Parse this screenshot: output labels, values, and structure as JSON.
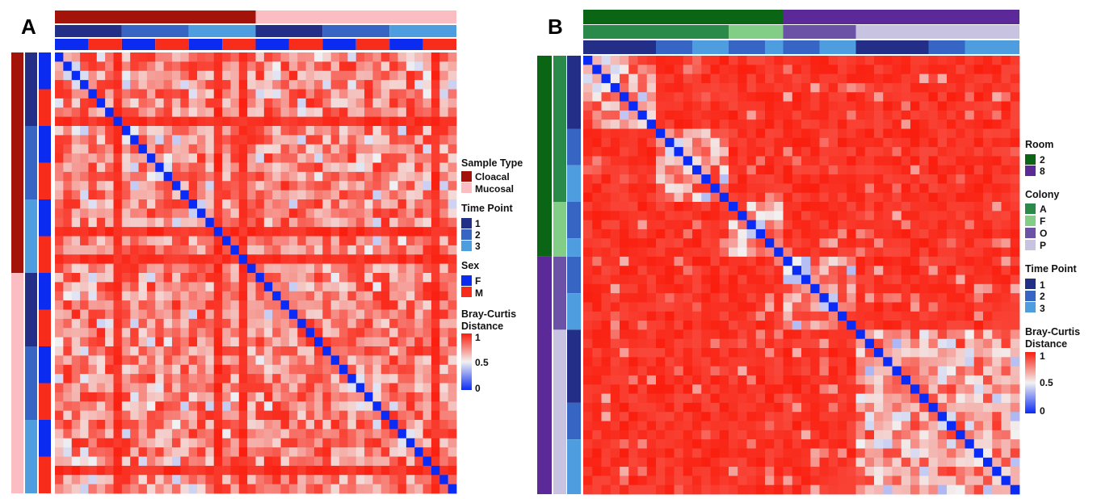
{
  "figure": {
    "colors": {
      "cloacal": "#A41309",
      "mucosal": "#FBBDC2",
      "time1": "#232E86",
      "time2": "#3765C3",
      "time3": "#4E9EDF",
      "female": "#0B2BF1",
      "male": "#F72C1B",
      "room2": "#0A6615",
      "room8": "#5B2998",
      "colonyA": "#2A8A4A",
      "colonyF": "#83CE87",
      "colonyO": "#6B52A6",
      "colonyP": "#C8C3E1",
      "dist_low": "#0A2BF5",
      "dist_mid": "#F2F2F2",
      "dist_high": "#FA1E0E"
    }
  },
  "chart_data": [
    {
      "type": "heatmap",
      "panel_label": "A",
      "n_samples": 48,
      "value_range": [
        0,
        1
      ],
      "diagonal_value": 0,
      "annotation_tracks": [
        {
          "name": "Sample Type",
          "groups": [
            {
              "label": "Cloacal",
              "count": 24
            },
            {
              "label": "Mucosal",
              "count": 24
            }
          ]
        },
        {
          "name": "Time Point",
          "groups": [
            {
              "label": "1",
              "count": 8
            },
            {
              "label": "2",
              "count": 8
            },
            {
              "label": "3",
              "count": 8
            },
            {
              "label": "1",
              "count": 8
            },
            {
              "label": "2",
              "count": 8
            },
            {
              "label": "3",
              "count": 8
            }
          ]
        },
        {
          "name": "Sex",
          "groups": [
            {
              "label": "F",
              "count": 4
            },
            {
              "label": "M",
              "count": 4
            },
            {
              "label": "F",
              "count": 4
            },
            {
              "label": "M",
              "count": 4
            },
            {
              "label": "F",
              "count": 4
            },
            {
              "label": "M",
              "count": 4
            },
            {
              "label": "F",
              "count": 4
            },
            {
              "label": "M",
              "count": 4
            },
            {
              "label": "F",
              "count": 4
            },
            {
              "label": "M",
              "count": 4
            },
            {
              "label": "F",
              "count": 4
            },
            {
              "label": "M",
              "count": 4
            }
          ]
        }
      ],
      "high_distance_samples": [
        7,
        19,
        22,
        45
      ],
      "legend": {
        "sample_type": {
          "title": "Sample Type",
          "items": [
            "Cloacal",
            "Mucosal"
          ]
        },
        "time_point": {
          "title": "Time Point",
          "items": [
            "1",
            "2",
            "3"
          ]
        },
        "sex": {
          "title": "Sex",
          "items": [
            "F",
            "M"
          ]
        },
        "distance": {
          "title_line1": "Bray-Curtis",
          "title_line2": "Distance",
          "ticks": [
            "1",
            "0.5",
            "0"
          ]
        }
      }
    },
    {
      "type": "heatmap",
      "panel_label": "B",
      "n_samples": 48,
      "value_range": [
        0,
        1
      ],
      "diagonal_value": 0,
      "annotation_tracks": [
        {
          "name": "Room",
          "groups": [
            {
              "label": "2",
              "count": 22
            },
            {
              "label": "8",
              "count": 26
            }
          ]
        },
        {
          "name": "Colony",
          "groups": [
            {
              "label": "A",
              "count": 16
            },
            {
              "label": "F",
              "count": 6
            },
            {
              "label": "O",
              "count": 8
            },
            {
              "label": "P",
              "count": 18
            }
          ]
        },
        {
          "name": "Time Point",
          "groups": [
            {
              "label": "1",
              "count": 8
            },
            {
              "label": "2",
              "count": 4
            },
            {
              "label": "3",
              "count": 4
            },
            {
              "label": "2",
              "count": 4
            },
            {
              "label": "3",
              "count": 2
            },
            {
              "label": "2",
              "count": 4
            },
            {
              "label": "3",
              "count": 4
            },
            {
              "label": "1",
              "count": 8
            },
            {
              "label": "2",
              "count": 4
            },
            {
              "label": "3",
              "count": 6
            }
          ]
        }
      ],
      "similarity_blocks": [
        [
          0,
          8
        ],
        [
          8,
          16
        ],
        [
          16,
          22
        ],
        [
          22,
          30
        ],
        [
          30,
          48
        ]
      ],
      "legend": {
        "room": {
          "title": "Room",
          "items": [
            "2",
            "8"
          ]
        },
        "colony": {
          "title": "Colony",
          "items": [
            "A",
            "F",
            "O",
            "P"
          ]
        },
        "time_point": {
          "title": "Time Point",
          "items": [
            "1",
            "2",
            "3"
          ]
        },
        "distance": {
          "title_line1": "Bray-Curtis",
          "title_line2": "Distance",
          "ticks": [
            "1",
            "0.5",
            "0"
          ]
        }
      }
    }
  ]
}
